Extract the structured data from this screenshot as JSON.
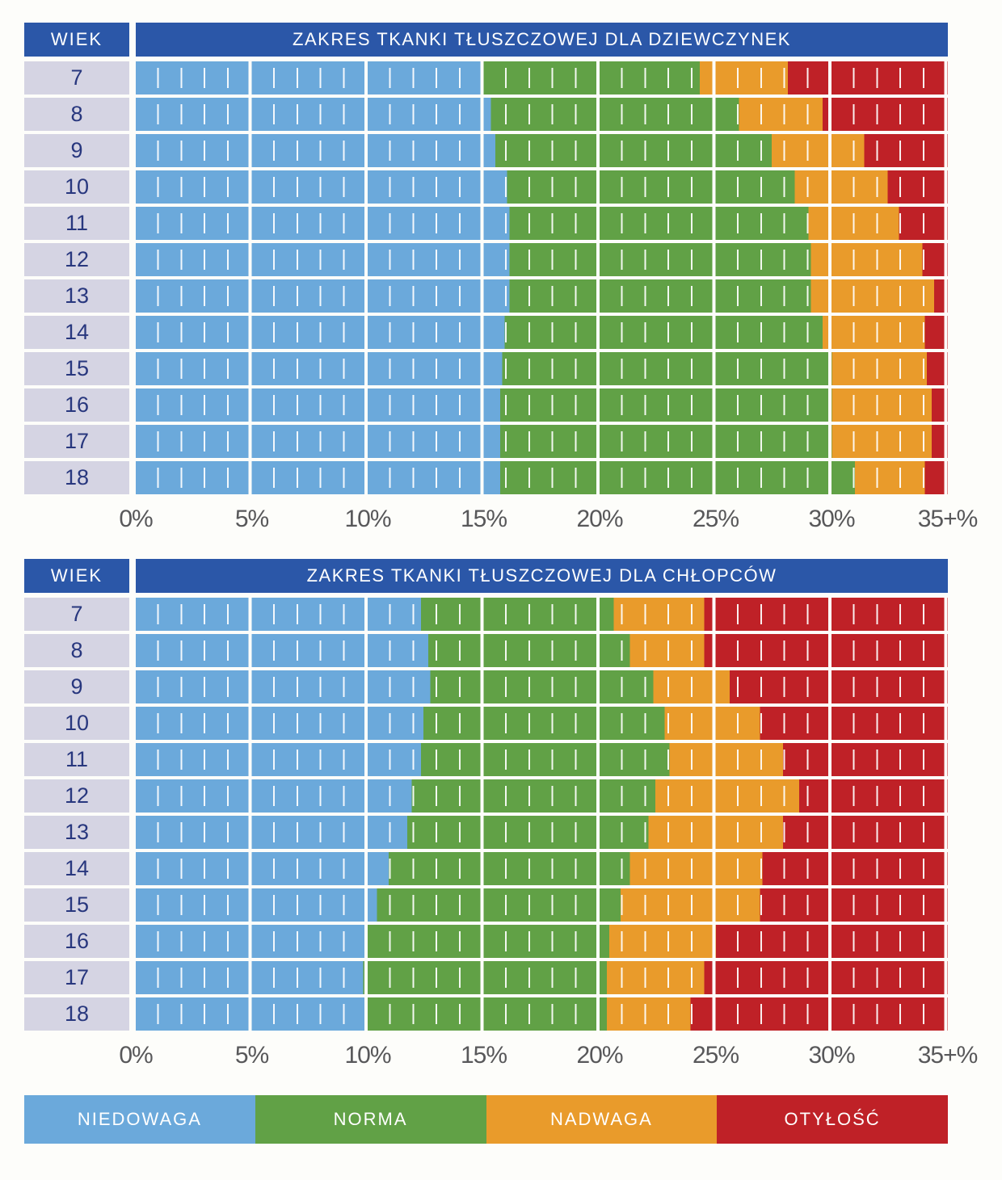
{
  "page_background": "#fdfdfa",
  "colors": {
    "header_blue": "#2b57a8",
    "age_cell": "#d5d4e3",
    "age_text": "#28377e",
    "axis_text": "#58585a",
    "underweight_blue": "#6ba9db",
    "normal_green": "#61a146",
    "overweight_orange": "#e99b2b",
    "obese_red": "#bf2127"
  },
  "series": [
    {
      "name": "NIEDOWAGA",
      "color": "#6ba9db"
    },
    {
      "name": "NORMA",
      "color": "#61a146"
    },
    {
      "name": "NADWAGA",
      "color": "#e99b2b"
    },
    {
      "name": "OTYŁOŚĆ",
      "color": "#bf2127"
    }
  ],
  "chart_data": [
    {
      "type": "bar",
      "variant": "stacked-horizontal-range",
      "title": "ZAKRES TKANKI TŁUSZCZOWEJ DLA DZIEWCZYNEK",
      "categories_label": "WIEK",
      "categories": [
        "7",
        "8",
        "9",
        "10",
        "11",
        "12",
        "13",
        "14",
        "15",
        "16",
        "17",
        "18"
      ],
      "series_names": [
        "NIEDOWAGA",
        "NORMA",
        "NADWAGA",
        "OTYŁOŚĆ"
      ],
      "x_axis": {
        "ticks": [
          "0%",
          "5%",
          "10%",
          "15%",
          "20%",
          "25%",
          "30%",
          "35+%"
        ],
        "min": 0,
        "max": 35,
        "unit": "% body fat"
      },
      "rows": [
        {
          "age": "7",
          "boundaries": [
            15.0,
            24.3,
            28.1
          ]
        },
        {
          "age": "8",
          "boundaries": [
            15.3,
            26.0,
            29.6
          ]
        },
        {
          "age": "9",
          "boundaries": [
            15.5,
            27.4,
            31.4
          ]
        },
        {
          "age": "10",
          "boundaries": [
            16.0,
            28.4,
            32.4
          ]
        },
        {
          "age": "11",
          "boundaries": [
            16.1,
            29.0,
            32.9
          ]
        },
        {
          "age": "12",
          "boundaries": [
            16.1,
            29.1,
            33.9
          ]
        },
        {
          "age": "13",
          "boundaries": [
            16.1,
            29.1,
            34.4
          ]
        },
        {
          "age": "14",
          "boundaries": [
            15.9,
            29.6,
            34.0
          ]
        },
        {
          "age": "15",
          "boundaries": [
            15.8,
            30.0,
            34.1
          ]
        },
        {
          "age": "16",
          "boundaries": [
            15.7,
            30.0,
            34.3
          ]
        },
        {
          "age": "17",
          "boundaries": [
            15.7,
            30.0,
            34.3
          ]
        },
        {
          "age": "18",
          "boundaries": [
            15.7,
            31.0,
            34.0
          ]
        }
      ]
    },
    {
      "type": "bar",
      "variant": "stacked-horizontal-range",
      "title": "ZAKRES TKANKI TŁUSZCZOWEJ DLA CHŁOPCÓW",
      "categories_label": "WIEK",
      "categories": [
        "7",
        "8",
        "9",
        "10",
        "11",
        "12",
        "13",
        "14",
        "15",
        "16",
        "17",
        "18"
      ],
      "series_names": [
        "NIEDOWAGA",
        "NORMA",
        "NADWAGA",
        "OTYŁOŚĆ"
      ],
      "x_axis": {
        "ticks": [
          "0%",
          "5%",
          "10%",
          "15%",
          "20%",
          "25%",
          "30%",
          "35+%"
        ],
        "min": 0,
        "max": 35,
        "unit": "% body fat"
      },
      "rows": [
        {
          "age": "7",
          "boundaries": [
            12.3,
            20.6,
            24.5
          ]
        },
        {
          "age": "8",
          "boundaries": [
            12.6,
            21.3,
            24.5
          ]
        },
        {
          "age": "9",
          "boundaries": [
            12.7,
            22.3,
            25.6
          ]
        },
        {
          "age": "10",
          "boundaries": [
            12.4,
            22.8,
            26.9
          ]
        },
        {
          "age": "11",
          "boundaries": [
            12.3,
            23.0,
            27.9
          ]
        },
        {
          "age": "12",
          "boundaries": [
            11.9,
            22.4,
            28.6
          ]
        },
        {
          "age": "13",
          "boundaries": [
            11.7,
            22.1,
            27.9
          ]
        },
        {
          "age": "14",
          "boundaries": [
            10.9,
            21.3,
            27.0
          ]
        },
        {
          "age": "15",
          "boundaries": [
            10.4,
            20.9,
            26.9
          ]
        },
        {
          "age": "16",
          "boundaries": [
            10.0,
            20.4,
            25.0
          ]
        },
        {
          "age": "17",
          "boundaries": [
            9.8,
            20.3,
            24.5
          ]
        },
        {
          "age": "18",
          "boundaries": [
            9.9,
            20.3,
            23.9
          ]
        }
      ]
    }
  ],
  "legend": {
    "items": [
      {
        "label": "NIEDOWAGA",
        "color": "#6ba9db"
      },
      {
        "label": "NORMA",
        "color": "#61a146"
      },
      {
        "label": "NADWAGA",
        "color": "#e99b2b"
      },
      {
        "label": "OTYŁOŚĆ",
        "color": "#bf2127"
      }
    ]
  }
}
